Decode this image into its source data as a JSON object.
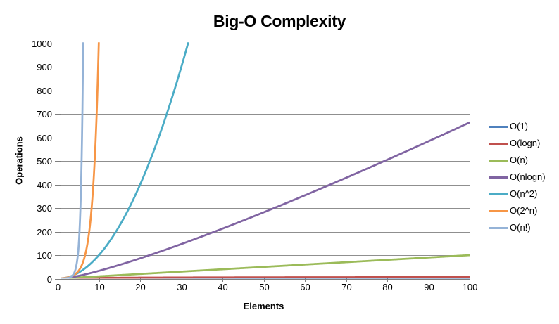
{
  "chart_data": {
    "type": "line",
    "title": "Big-O Complexity",
    "xlabel": "Elements",
    "ylabel": "Operations",
    "xlim": [
      0,
      100
    ],
    "ylim": [
      0,
      1000
    ],
    "x_ticks": [
      0,
      10,
      20,
      30,
      40,
      50,
      60,
      70,
      80,
      90,
      100
    ],
    "y_ticks": [
      0,
      100,
      200,
      300,
      400,
      500,
      600,
      700,
      800,
      900,
      1000
    ],
    "grid": "horizontal",
    "grid_color": "#8F8F8F",
    "axis_color": "#7F7F7F",
    "legend_position": "right",
    "series": [
      {
        "name": "O(1)",
        "color": "#4F81BD",
        "formula": "1",
        "points": [
          [
            1,
            1
          ],
          [
            10,
            1
          ],
          [
            20,
            1
          ],
          [
            30,
            1
          ],
          [
            40,
            1
          ],
          [
            50,
            1
          ],
          [
            60,
            1
          ],
          [
            70,
            1
          ],
          [
            80,
            1
          ],
          [
            90,
            1
          ],
          [
            100,
            1
          ]
        ]
      },
      {
        "name": "O(logn)",
        "color": "#C0504D",
        "formula": "log2(n)",
        "points": [
          [
            1,
            0
          ],
          [
            2,
            1
          ],
          [
            4,
            2
          ],
          [
            8,
            3
          ],
          [
            16,
            4
          ],
          [
            32,
            5
          ],
          [
            64,
            6
          ],
          [
            100,
            6.64
          ]
        ]
      },
      {
        "name": "O(n)",
        "color": "#9BBB59",
        "formula": "n",
        "points": [
          [
            1,
            1
          ],
          [
            10,
            10
          ],
          [
            20,
            20
          ],
          [
            30,
            30
          ],
          [
            40,
            40
          ],
          [
            50,
            50
          ],
          [
            60,
            60
          ],
          [
            70,
            70
          ],
          [
            80,
            80
          ],
          [
            90,
            90
          ],
          [
            100,
            100
          ]
        ]
      },
      {
        "name": "O(nlogn)",
        "color": "#8064A2",
        "formula": "n*log2(n)",
        "points": [
          [
            1,
            0
          ],
          [
            10,
            33.2
          ],
          [
            20,
            86.4
          ],
          [
            30,
            147.2
          ],
          [
            40,
            212.9
          ],
          [
            50,
            282.2
          ],
          [
            60,
            354.4
          ],
          [
            70,
            429.0
          ],
          [
            80,
            505.8
          ],
          [
            90,
            584.3
          ],
          [
            100,
            664.4
          ]
        ]
      },
      {
        "name": "O(n^2)",
        "color": "#4BACC6",
        "formula": "n^2",
        "points": [
          [
            1,
            1
          ],
          [
            5,
            25
          ],
          [
            10,
            100
          ],
          [
            15,
            225
          ],
          [
            20,
            400
          ],
          [
            25,
            625
          ],
          [
            30,
            900
          ],
          [
            31.6,
            1000
          ]
        ]
      },
      {
        "name": "O(2^n)",
        "color": "#F79646",
        "formula": "2^n",
        "points": [
          [
            1,
            2
          ],
          [
            2,
            4
          ],
          [
            3,
            8
          ],
          [
            4,
            16
          ],
          [
            5,
            32
          ],
          [
            6,
            64
          ],
          [
            7,
            128
          ],
          [
            8,
            256
          ],
          [
            9,
            512
          ],
          [
            9.97,
            1000
          ]
        ]
      },
      {
        "name": "O(n!)",
        "color": "#95B3D7",
        "formula": "n!",
        "points": [
          [
            1,
            1
          ],
          [
            2,
            2
          ],
          [
            3,
            6
          ],
          [
            4,
            24
          ],
          [
            5,
            120
          ],
          [
            6,
            720
          ],
          [
            6.2,
            1000
          ]
        ]
      }
    ]
  }
}
